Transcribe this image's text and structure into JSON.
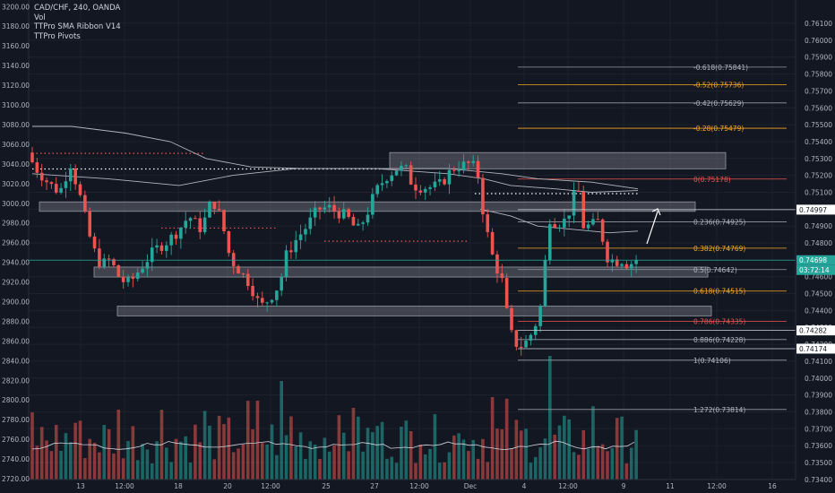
{
  "legend": {
    "symbol": "CAD/CHF, 240, OANDA",
    "volume": "Vol",
    "ribbon": "TTPro SMA Ribbon V14",
    "pivots": "TTPro Pivots"
  },
  "chart_data": {
    "type": "candlestick",
    "symbol": "CAD/CHF",
    "interval": "240",
    "source": "OANDA",
    "left_axis": {
      "ticks": [
        "3200.00",
        "3180.00",
        "3160.00",
        "3140.00",
        "3120.00",
        "3100.00",
        "3080.00",
        "3060.00",
        "3040.00",
        "3020.00",
        "3000.00",
        "2980.00",
        "2960.00",
        "2940.00",
        "2920.00",
        "2900.00",
        "2880.00",
        "2860.00",
        "2840.00",
        "2820.00",
        "2800.00",
        "2780.00",
        "2760.00",
        "2740.00",
        "2720.00"
      ],
      "range": [
        2710,
        3203
      ]
    },
    "right_axis": {
      "ticks": [
        "0.76100",
        "0.76000",
        "0.75900",
        "0.75800",
        "0.75700",
        "0.75600",
        "0.75500",
        "0.75400",
        "0.75300",
        "0.75200",
        "0.75100",
        "0.75000",
        "0.74900",
        "0.74800",
        "0.74700",
        "0.74600",
        "0.74500",
        "0.74400",
        "0.74300",
        "0.74200",
        "0.74100",
        "0.74000",
        "0.73900",
        "0.73800",
        "0.73700",
        "0.73600",
        "0.73500",
        "0.73400"
      ],
      "range": [
        0.73346,
        0.76217
      ]
    },
    "x_axis": {
      "ticks": [
        "13",
        "12:00",
        "18",
        "20",
        "12:00",
        "25",
        "27",
        "12:00",
        "Dec",
        "4",
        "12:00",
        "9",
        "11",
        "12:00",
        "16"
      ]
    },
    "price_tags": [
      {
        "value": "0.74997",
        "color": "#ffffff",
        "text_color": "#131722"
      },
      {
        "value": "0.74698",
        "color": "#26a69a",
        "text_color": "#ffffff"
      },
      {
        "value": "03:72:14",
        "color": "#26a69a",
        "text_color": "#ffffff"
      },
      {
        "value": "0.74282",
        "color": "#ffffff",
        "text_color": "#131722"
      },
      {
        "value": "0.74174",
        "color": "#ffffff",
        "text_color": "#131722"
      }
    ],
    "fib_levels": [
      {
        "label": "-0.618(0.75841)",
        "value": 0.75841,
        "color": "#787b86"
      },
      {
        "label": "-0.52(0.75736)",
        "value": 0.75736,
        "color": "#f5a623"
      },
      {
        "label": "-0.42(0.75629)",
        "value": 0.75629,
        "color": "#787b86"
      },
      {
        "label": "-0.28(0.75479)",
        "value": 0.75479,
        "color": "#f5a623"
      },
      {
        "label": "0(0.75178)",
        "value": 0.75178,
        "color": "#ef5350"
      },
      {
        "label": "0.236(0.74925)",
        "value": 0.74925,
        "color": "#787b86"
      },
      {
        "label": "0.382(0.74769)",
        "value": 0.74769,
        "color": "#f5a623"
      },
      {
        "label": "0.5(0.74642)",
        "value": 0.74642,
        "color": "#787b86"
      },
      {
        "label": "0.618(0.74515)",
        "value": 0.74515,
        "color": "#f5a623"
      },
      {
        "label": "0.786(0.74335)",
        "value": 0.74335,
        "color": "#ef5350"
      },
      {
        "label": "0.886(0.74228)",
        "value": 0.74228,
        "color": "#787b86"
      },
      {
        "label": "1(0.74106)",
        "value": 0.74106,
        "color": "#787b86"
      },
      {
        "label": "1.272(0.73814)",
        "value": 0.73814,
        "color": "#787b86"
      }
    ],
    "zones": [
      {
        "x0": 0.0,
        "x1": 0.23,
        "top": 0.75335,
        "bottom": 0.75239
      },
      {
        "x0": 0.38,
        "x1": 0.84,
        "top": 0.75247,
        "bottom": 0.75247
      },
      {
        "x0": 0.0,
        "x1": 0.24,
        "top": 0.75043,
        "bottom": 0.74987
      },
      {
        "x0": 0.0,
        "x1": 0.0,
        "top": 0.75043,
        "bottom": 0.74987
      },
      {
        "x0": 0.0,
        "x1": 0.0,
        "top": 0.74657,
        "bottom": 0.74598
      },
      {
        "x0": 0.0,
        "x1": 0.0,
        "top": 0.74426,
        "bottom": 0.74368
      }
    ],
    "colors": {
      "bull": "#26a69a",
      "bear": "#ef5350",
      "background": "#131722",
      "grid": "#1e222d",
      "text": "#b2b5be",
      "zone": "#787b86",
      "ribbon": "#b2b5be"
    }
  }
}
